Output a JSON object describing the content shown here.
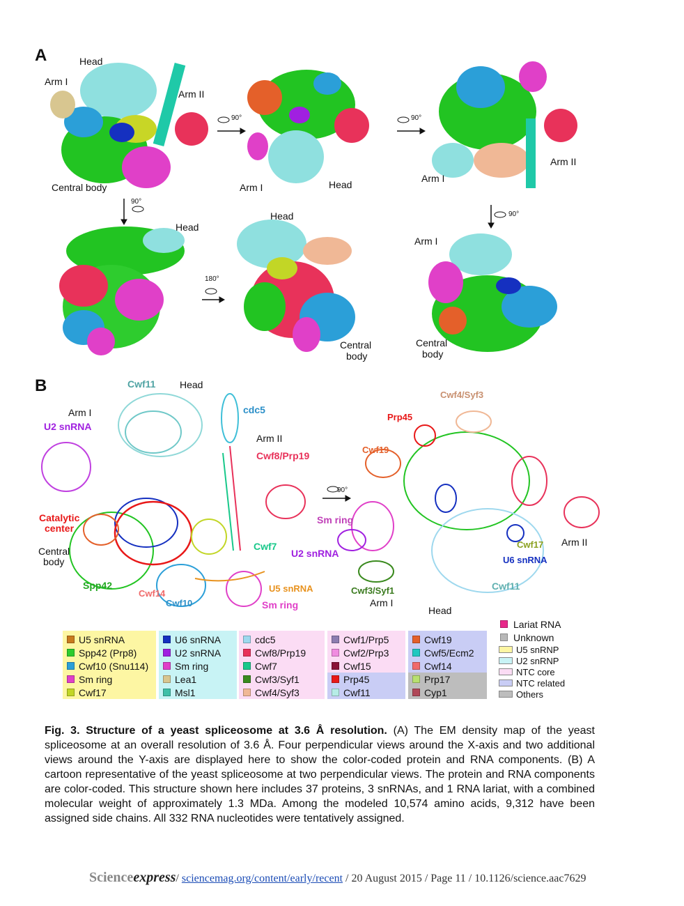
{
  "panel_a": {
    "letter": "A",
    "labels": {
      "head1": "Head",
      "arm1_1": "Arm I",
      "arm2_1": "Arm II",
      "central1": "Central body",
      "arm1_2": "Arm I",
      "head2": "Head",
      "arm2_3": "Arm II",
      "arm1_3": "Arm I",
      "head4": "Head",
      "head5": "Head",
      "central5a": "Central",
      "central5b": "body",
      "arm1_6": "Arm I",
      "central6a": "Central",
      "central6b": "body"
    },
    "rotations": {
      "r1": "90°",
      "r2": "90°",
      "r3": "90°",
      "r4": "180°",
      "r5": "90°"
    }
  },
  "panel_b": {
    "letter": "B",
    "labels": {
      "cwf11_top": "Cwf11",
      "head_top": "Head",
      "arm1": "Arm I",
      "u2": "U2 snRNA",
      "cdc5": "cdc5",
      "arm2": "Arm II",
      "cwf8": "Cwf8/Prp19",
      "catalytic": "Catalytic",
      "center": "center",
      "central": "Central",
      "body": "body",
      "cwf7": "Cwf7",
      "spp42": "Spp42",
      "cwf14": "Cwf14",
      "cwf10": "Cwf10",
      "u5": "U5 snRNA",
      "smring_l": "Sm ring",
      "cwf4": "Cwf4/Syf3",
      "prp45": "Prp45",
      "cwf19": "Cwf19",
      "smring_r": "Sm ring",
      "u2_r": "U2 snRNA",
      "cwf17": "Cwf17",
      "arm2_r": "Arm II",
      "u6_r": "U6 snRNA",
      "cwf3": "Cwf3/Syf1",
      "arm1_r": "Arm I",
      "cwf11_r": "Cwf11",
      "head_r": "Head"
    },
    "rotation": "90°"
  },
  "legend": {
    "columns": [
      {
        "bg": "#fdf6a3",
        "items": [
          {
            "name": "U5 snRNA",
            "color": "#c87a1e"
          },
          {
            "name": "Spp42 (Prp8)",
            "color": "#2ecc2e"
          },
          {
            "name": "Cwf10 (Snu114)",
            "color": "#2b9fd8"
          },
          {
            "name": "Sm ring",
            "color": "#e040c8"
          },
          {
            "name": "Cwf17",
            "color": "#c2d626"
          }
        ]
      },
      {
        "bg": "#c8f3f5",
        "items": [
          {
            "name": "U6 snRNA",
            "color": "#1530c0"
          },
          {
            "name": "U2 snRNA",
            "color": "#a020e0"
          },
          {
            "name": "Sm ring",
            "color": "#e040c8"
          },
          {
            "name": "Lea1",
            "color": "#d8c690"
          },
          {
            "name": "Msl1",
            "color": "#3fbfa8"
          }
        ]
      },
      {
        "bg": "#fbdcf4",
        "items": [
          {
            "name": "cdc5",
            "color": "#9ed8ee"
          },
          {
            "name": "Cwf8/Prp19",
            "color": "#e8325a"
          },
          {
            "name": "Cwf7",
            "color": "#18c88a"
          },
          {
            "name": "Cwf3/Syf1",
            "color": "#3a8a1e"
          },
          {
            "name": "Cwf4/Syf3",
            "color": "#f0b896"
          }
        ]
      },
      {
        "bg": "#fbdcf4",
        "items": [
          {
            "name": "Cwf1/Prp5",
            "color": "#8c7cb0"
          },
          {
            "name": "Cwf2/Prp3",
            "color": "#f08ce0"
          },
          {
            "name": "Cwf15",
            "color": "#8a1238"
          },
          {
            "name": "Prp45",
            "color": "#e81818"
          },
          {
            "name": "Cwf11",
            "color": "#b6ece6"
          }
        ]
      },
      {
        "bg": "#c9cdf5",
        "items": [
          {
            "name": "Cwf19",
            "color": "#e4602a"
          },
          {
            "name": "Cwf5/Ecm2",
            "color": "#20c8c0"
          },
          {
            "name": "Cwf14",
            "color": "#f06a6a"
          },
          {
            "name": "Prp17",
            "color": "#b8e070"
          },
          {
            "name": "Cyp1",
            "color": "#b04858"
          }
        ]
      }
    ],
    "key": [
      {
        "name": "Lariat RNA",
        "color": "#e8288a",
        "style": "square"
      },
      {
        "name": "Unknown",
        "color": "#b8b8b8",
        "style": "square"
      },
      {
        "name": "U5 snRNP",
        "color": "#fdf6a3",
        "style": "box"
      },
      {
        "name": "U2 snRNP",
        "color": "#c8f3f5",
        "style": "box"
      },
      {
        "name": "NTC core",
        "color": "#fbdcf4",
        "style": "box"
      },
      {
        "name": "NTC related",
        "color": "#c9cdf5",
        "style": "box"
      },
      {
        "name": "Others",
        "color": "#bdbdbd",
        "style": "box"
      }
    ]
  },
  "caption": {
    "fig": "Fig. 3. Structure of a yeast spliceosome at 3.6 Å resolution.",
    "text": " (A) The EM density map of the yeast spliceosome at an overall resolution of 3.6 Å. Four perpendicular views around the X-axis and two additional views around the Y-axis are displayed here to show the color-coded protein and RNA components. (B) A cartoon representative of the yeast spliceosome at two perpendicular views. The protein and RNA components are color-coded. This structure shown here includes 37 proteins, 3 snRNAs, and 1 RNA lariat, with a combined molecular weight of approximately 1.3 MDa. Among the modeled 10,574 amino acids, 9,312 have been assigned side chains. All 332 RNA nucleotides were tentatively assigned."
  },
  "footer": {
    "science": "Science",
    "express": "express",
    "sep1": "/ ",
    "link": "sciencemag.org/content/early/recent",
    "rest": " / 20 August 2015 / Page 11 / 10.1126/science.aac7629"
  }
}
